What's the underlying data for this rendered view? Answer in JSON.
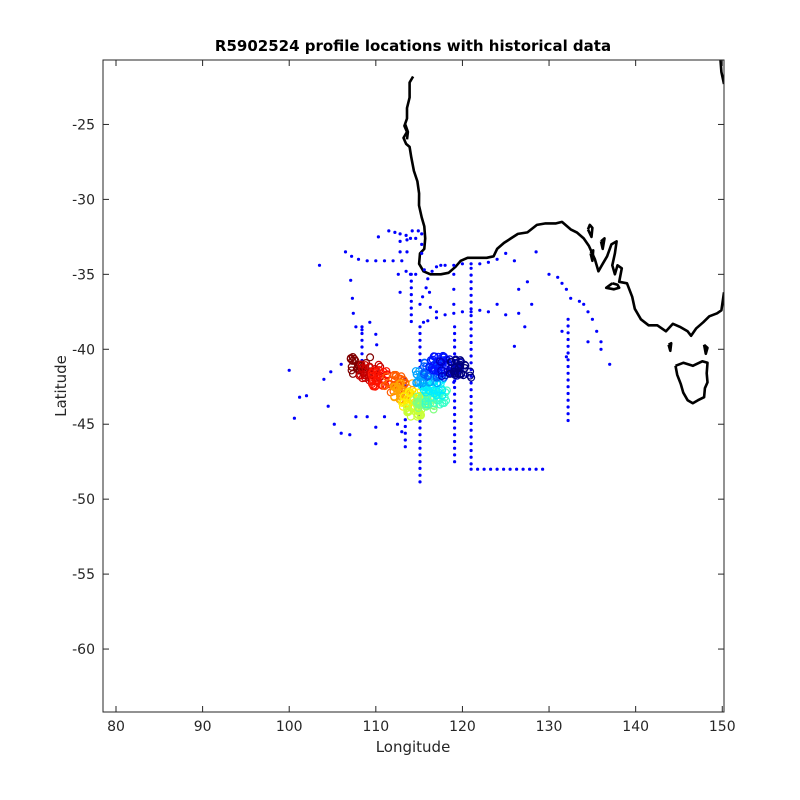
{
  "chart_data": {
    "type": "scatter",
    "title": "R5902524 profile locations with historical data",
    "xlabel": "Longitude",
    "ylabel": "Latitude",
    "xlim": [
      78.5,
      150.2
    ],
    "ylim": [
      -64.2,
      -20.7
    ],
    "xticks": [
      80,
      90,
      100,
      110,
      120,
      130,
      140,
      150
    ],
    "yticks": [
      -25,
      -30,
      -35,
      -40,
      -45,
      -50,
      -55,
      -60
    ],
    "grid": false,
    "colors": {
      "historical": "#0000ff",
      "coast": "#000000",
      "axis": "#262626"
    },
    "historical": [
      [
        103.5,
        -34.4
      ],
      [
        106.5,
        -33.5
      ],
      [
        107.2,
        -33.8
      ],
      [
        108,
        -34
      ],
      [
        109,
        -34.1
      ],
      [
        110,
        -34.1
      ],
      [
        111,
        -34.1
      ],
      [
        112,
        -34.1
      ],
      [
        113,
        -34.1
      ],
      [
        110.3,
        -32.5
      ],
      [
        111.5,
        -32.1
      ],
      [
        112.2,
        -32.2
      ],
      [
        112.8,
        -32.3
      ],
      [
        113.5,
        -32.4
      ],
      [
        114.2,
        -32.1
      ],
      [
        114.9,
        -32.1
      ],
      [
        115.3,
        -32.3
      ],
      [
        115.3,
        -33
      ],
      [
        115.3,
        -33.6
      ],
      [
        112.8,
        -32.8
      ],
      [
        112.8,
        -33.5
      ],
      [
        113.6,
        -32.7
      ],
      [
        113.6,
        -33.5
      ],
      [
        114,
        -32.6
      ],
      [
        114.6,
        -32.6
      ],
      [
        113.5,
        -34.8
      ],
      [
        114,
        -35
      ],
      [
        114.6,
        -35
      ],
      [
        112.6,
        -35
      ],
      [
        112.8,
        -36.2
      ],
      [
        116.5,
        -34.8
      ],
      [
        117,
        -34.5
      ],
      [
        117.5,
        -34.4
      ],
      [
        118,
        -34.4
      ],
      [
        119,
        -34.4
      ],
      [
        120,
        -34.3
      ],
      [
        121,
        -34.3
      ],
      [
        122,
        -34.3
      ],
      [
        123,
        -34.2
      ],
      [
        124,
        -34
      ],
      [
        125,
        -33.6
      ],
      [
        126,
        -34.1
      ],
      [
        128.5,
        -33.5
      ],
      [
        115.6,
        -34.7
      ],
      [
        116,
        -35.3
      ],
      [
        115.8,
        -35.9
      ],
      [
        115.4,
        -36.5
      ],
      [
        115.1,
        -37
      ],
      [
        116.2,
        -36.2
      ],
      [
        116.3,
        -37.2
      ],
      [
        117,
        -37.5
      ],
      [
        115.5,
        -38.2
      ],
      [
        116,
        -38.1
      ],
      [
        117,
        -37.9
      ],
      [
        118,
        -37.7
      ],
      [
        119,
        -37.6
      ],
      [
        120,
        -37.5
      ],
      [
        121,
        -37.5
      ],
      [
        122,
        -37.4
      ],
      [
        123,
        -37.5
      ],
      [
        125,
        -37.7
      ],
      [
        126.5,
        -37.6
      ],
      [
        107.1,
        -35.4
      ],
      [
        107.3,
        -36.6
      ],
      [
        107.4,
        -37.6
      ],
      [
        107.7,
        -38.5
      ],
      [
        108.4,
        -38.7
      ],
      [
        109.3,
        -38.2
      ],
      [
        110,
        -39
      ],
      [
        110.1,
        -39.7
      ],
      [
        119,
        -35
      ],
      [
        119,
        -36
      ],
      [
        119,
        -37
      ],
      [
        124,
        -37
      ],
      [
        127.5,
        -35.5
      ],
      [
        130,
        -35
      ],
      [
        131,
        -35.2
      ],
      [
        131.5,
        -35.6
      ],
      [
        132,
        -36
      ],
      [
        132.5,
        -36.6
      ],
      [
        133.5,
        -36.8
      ],
      [
        134,
        -37
      ],
      [
        134.5,
        -37.5
      ],
      [
        135,
        -38
      ],
      [
        135.5,
        -38.8
      ],
      [
        136,
        -39.5
      ],
      [
        137,
        -41
      ],
      [
        136,
        -40
      ],
      [
        134.5,
        -39.5
      ],
      [
        128,
        -37
      ],
      [
        127.2,
        -38.5
      ],
      [
        126,
        -39.8
      ],
      [
        126.5,
        -36
      ],
      [
        131.5,
        -38.8
      ],
      [
        132,
        -40.5
      ],
      [
        120,
        -41
      ],
      [
        120.5,
        -41.8
      ],
      [
        119,
        -42.2
      ],
      [
        100,
        -41.4
      ],
      [
        100.6,
        -44.6
      ],
      [
        101.2,
        -43.2
      ],
      [
        102,
        -43.1
      ],
      [
        104,
        -42
      ],
      [
        104.5,
        -43.8
      ],
      [
        105.2,
        -45
      ],
      [
        106,
        -45.6
      ],
      [
        107,
        -45.7
      ],
      [
        107.7,
        -44.5
      ],
      [
        109,
        -44.5
      ],
      [
        110,
        -45.2
      ],
      [
        110,
        -46.3
      ],
      [
        104.8,
        -41.5
      ],
      [
        106,
        -41
      ],
      [
        111,
        -44.5
      ],
      [
        112.5,
        -45
      ],
      [
        113,
        -45.5
      ]
    ],
    "tracks": [
      {
        "lon": 115.1,
        "lat_from": -38.5,
        "lat_to": -48.9
      },
      {
        "lon": 119.1,
        "lat_from": -38.5,
        "lat_to": -47.8
      },
      {
        "lon": 121.0,
        "lat_from": -34.6,
        "lat_to": -48.0
      },
      {
        "lon": 132.2,
        "lat_from": -38.0,
        "lat_to": -44.8
      },
      {
        "lon": 113.4,
        "lat_from": -42.0,
        "lat_to": -46.5
      },
      {
        "lon": 114.1,
        "lat_from": -35.0,
        "lat_to": -38.5
      },
      {
        "lon": 108.4,
        "lat_from": -38.5,
        "lat_to": -41.0
      }
    ],
    "float_cycles": [
      {
        "lon": 108.2,
        "lat": -41.1
      },
      {
        "lon": 109.4,
        "lat": -41.6
      },
      {
        "lon": 110.8,
        "lat": -41.9
      },
      {
        "lon": 112.2,
        "lat": -42.3
      },
      {
        "lon": 113.2,
        "lat": -42.8
      },
      {
        "lon": 114.2,
        "lat": -43.4
      },
      {
        "lon": 114.9,
        "lat": -43.9
      },
      {
        "lon": 116.0,
        "lat": -43.5
      },
      {
        "lon": 117.0,
        "lat": -43.1
      },
      {
        "lon": 116.5,
        "lat": -42.5
      },
      {
        "lon": 115.8,
        "lat": -41.8
      },
      {
        "lon": 116.6,
        "lat": -41.3
      },
      {
        "lon": 117.4,
        "lat": -41.0
      },
      {
        "lon": 118.6,
        "lat": -41.2
      },
      {
        "lon": 119.8,
        "lat": -41.3
      }
    ],
    "coastline": [
      [
        [
          114.3,
          -21.8
        ],
        [
          113.9,
          -22.2
        ],
        [
          113.9,
          -23.2
        ],
        [
          113.6,
          -23.9
        ],
        [
          113.6,
          -24.6
        ],
        [
          113.3,
          -25.1
        ],
        [
          113.6,
          -25.5
        ],
        [
          113.2,
          -25.9
        ],
        [
          113.5,
          -26.3
        ],
        [
          113.9,
          -26.5
        ],
        [
          114.1,
          -27.2
        ],
        [
          114.4,
          -28.1
        ],
        [
          114.8,
          -28.8
        ],
        [
          115.0,
          -29.6
        ],
        [
          114.98,
          -30.4
        ],
        [
          115.3,
          -31.2
        ],
        [
          115.6,
          -31.8
        ],
        [
          115.7,
          -32.6
        ],
        [
          115.6,
          -33.3
        ],
        [
          115.1,
          -33.6
        ],
        [
          115.0,
          -34.3
        ],
        [
          115.5,
          -34.8
        ],
        [
          116.3,
          -35.0
        ],
        [
          117.5,
          -35.0
        ],
        [
          118.4,
          -34.9
        ],
        [
          119.2,
          -34.5
        ],
        [
          119.8,
          -34.1
        ],
        [
          120.6,
          -33.9
        ],
        [
          121.7,
          -33.9
        ],
        [
          122.8,
          -33.9
        ],
        [
          123.6,
          -33.8
        ],
        [
          124.0,
          -33.3
        ],
        [
          124.8,
          -32.9
        ],
        [
          125.6,
          -32.6
        ],
        [
          126.4,
          -32.3
        ],
        [
          127.5,
          -32.2
        ],
        [
          128.6,
          -31.7
        ],
        [
          129.6,
          -31.6
        ],
        [
          130.8,
          -31.6
        ],
        [
          131.5,
          -31.5
        ],
        [
          132.5,
          -32.0
        ],
        [
          133.2,
          -32.2
        ],
        [
          134.0,
          -32.6
        ],
        [
          134.6,
          -33.1
        ],
        [
          135.3,
          -34.0
        ],
        [
          135.7,
          -34.8
        ],
        [
          136.2,
          -34.3
        ],
        [
          136.7,
          -33.8
        ],
        [
          137.2,
          -33.0
        ],
        [
          137.8,
          -32.8
        ],
        [
          137.6,
          -33.6
        ],
        [
          137.3,
          -34.4
        ],
        [
          137.6,
          -35.0
        ],
        [
          137.9,
          -34.4
        ],
        [
          138.4,
          -34.6
        ],
        [
          138.1,
          -35.5
        ],
        [
          139.0,
          -35.6
        ],
        [
          139.6,
          -36.5
        ],
        [
          139.9,
          -37.3
        ],
        [
          140.6,
          -38.0
        ],
        [
          141.5,
          -38.4
        ],
        [
          142.5,
          -38.4
        ],
        [
          143.5,
          -38.8
        ],
        [
          144.3,
          -38.3
        ],
        [
          145.1,
          -38.5
        ],
        [
          146.0,
          -38.8
        ],
        [
          146.4,
          -39.1
        ],
        [
          147.0,
          -38.6
        ],
        [
          147.8,
          -38.2
        ],
        [
          148.5,
          -37.8
        ],
        [
          149.4,
          -37.6
        ],
        [
          149.9,
          -37.4
        ],
        [
          150.2,
          -36.2
        ]
      ],
      [
        [
          149.8,
          -20.7
        ],
        [
          149.9,
          -21.5
        ],
        [
          150.2,
          -22.3
        ]
      ],
      [
        [
          113.4,
          -25.0
        ],
        [
          113.7,
          -25.5
        ],
        [
          113.6,
          -26.0
        ]
      ],
      [
        [
          137.3,
          -35.6
        ],
        [
          137.9,
          -35.7
        ],
        [
          138.1,
          -35.9
        ],
        [
          137.5,
          -36.0
        ],
        [
          136.6,
          -35.9
        ],
        [
          137.3,
          -35.6
        ]
      ],
      [
        [
          134.5,
          -32.0
        ],
        [
          134.7,
          -31.7
        ],
        [
          135.0,
          -31.9
        ],
        [
          134.9,
          -32.5
        ],
        [
          134.5,
          -32.0
        ]
      ],
      [
        [
          134.8,
          -33.6
        ],
        [
          135.1,
          -33.4
        ],
        [
          135.0,
          -34.1
        ],
        [
          134.8,
          -33.6
        ]
      ],
      [
        [
          136.0,
          -32.8
        ],
        [
          136.4,
          -32.6
        ],
        [
          136.2,
          -33.3
        ],
        [
          136.0,
          -32.8
        ]
      ],
      [
        [
          144.6,
          -41.1
        ],
        [
          145.5,
          -40.9
        ],
        [
          146.6,
          -41.1
        ],
        [
          147.7,
          -40.8
        ],
        [
          148.3,
          -40.9
        ],
        [
          148.2,
          -41.6
        ],
        [
          148.3,
          -42.2
        ],
        [
          148.0,
          -42.6
        ],
        [
          147.9,
          -43.2
        ],
        [
          147.2,
          -43.4
        ],
        [
          146.6,
          -43.6
        ],
        [
          146.0,
          -43.4
        ],
        [
          145.5,
          -42.9
        ],
        [
          145.2,
          -42.3
        ],
        [
          144.8,
          -41.7
        ],
        [
          144.6,
          -41.1
        ]
      ],
      [
        [
          143.8,
          -39.7
        ],
        [
          144.1,
          -39.6
        ],
        [
          144.0,
          -40.1
        ],
        [
          143.8,
          -39.7
        ]
      ],
      [
        [
          147.9,
          -39.7
        ],
        [
          148.3,
          -39.9
        ],
        [
          148.1,
          -40.3
        ],
        [
          147.9,
          -39.7
        ]
      ]
    ]
  }
}
